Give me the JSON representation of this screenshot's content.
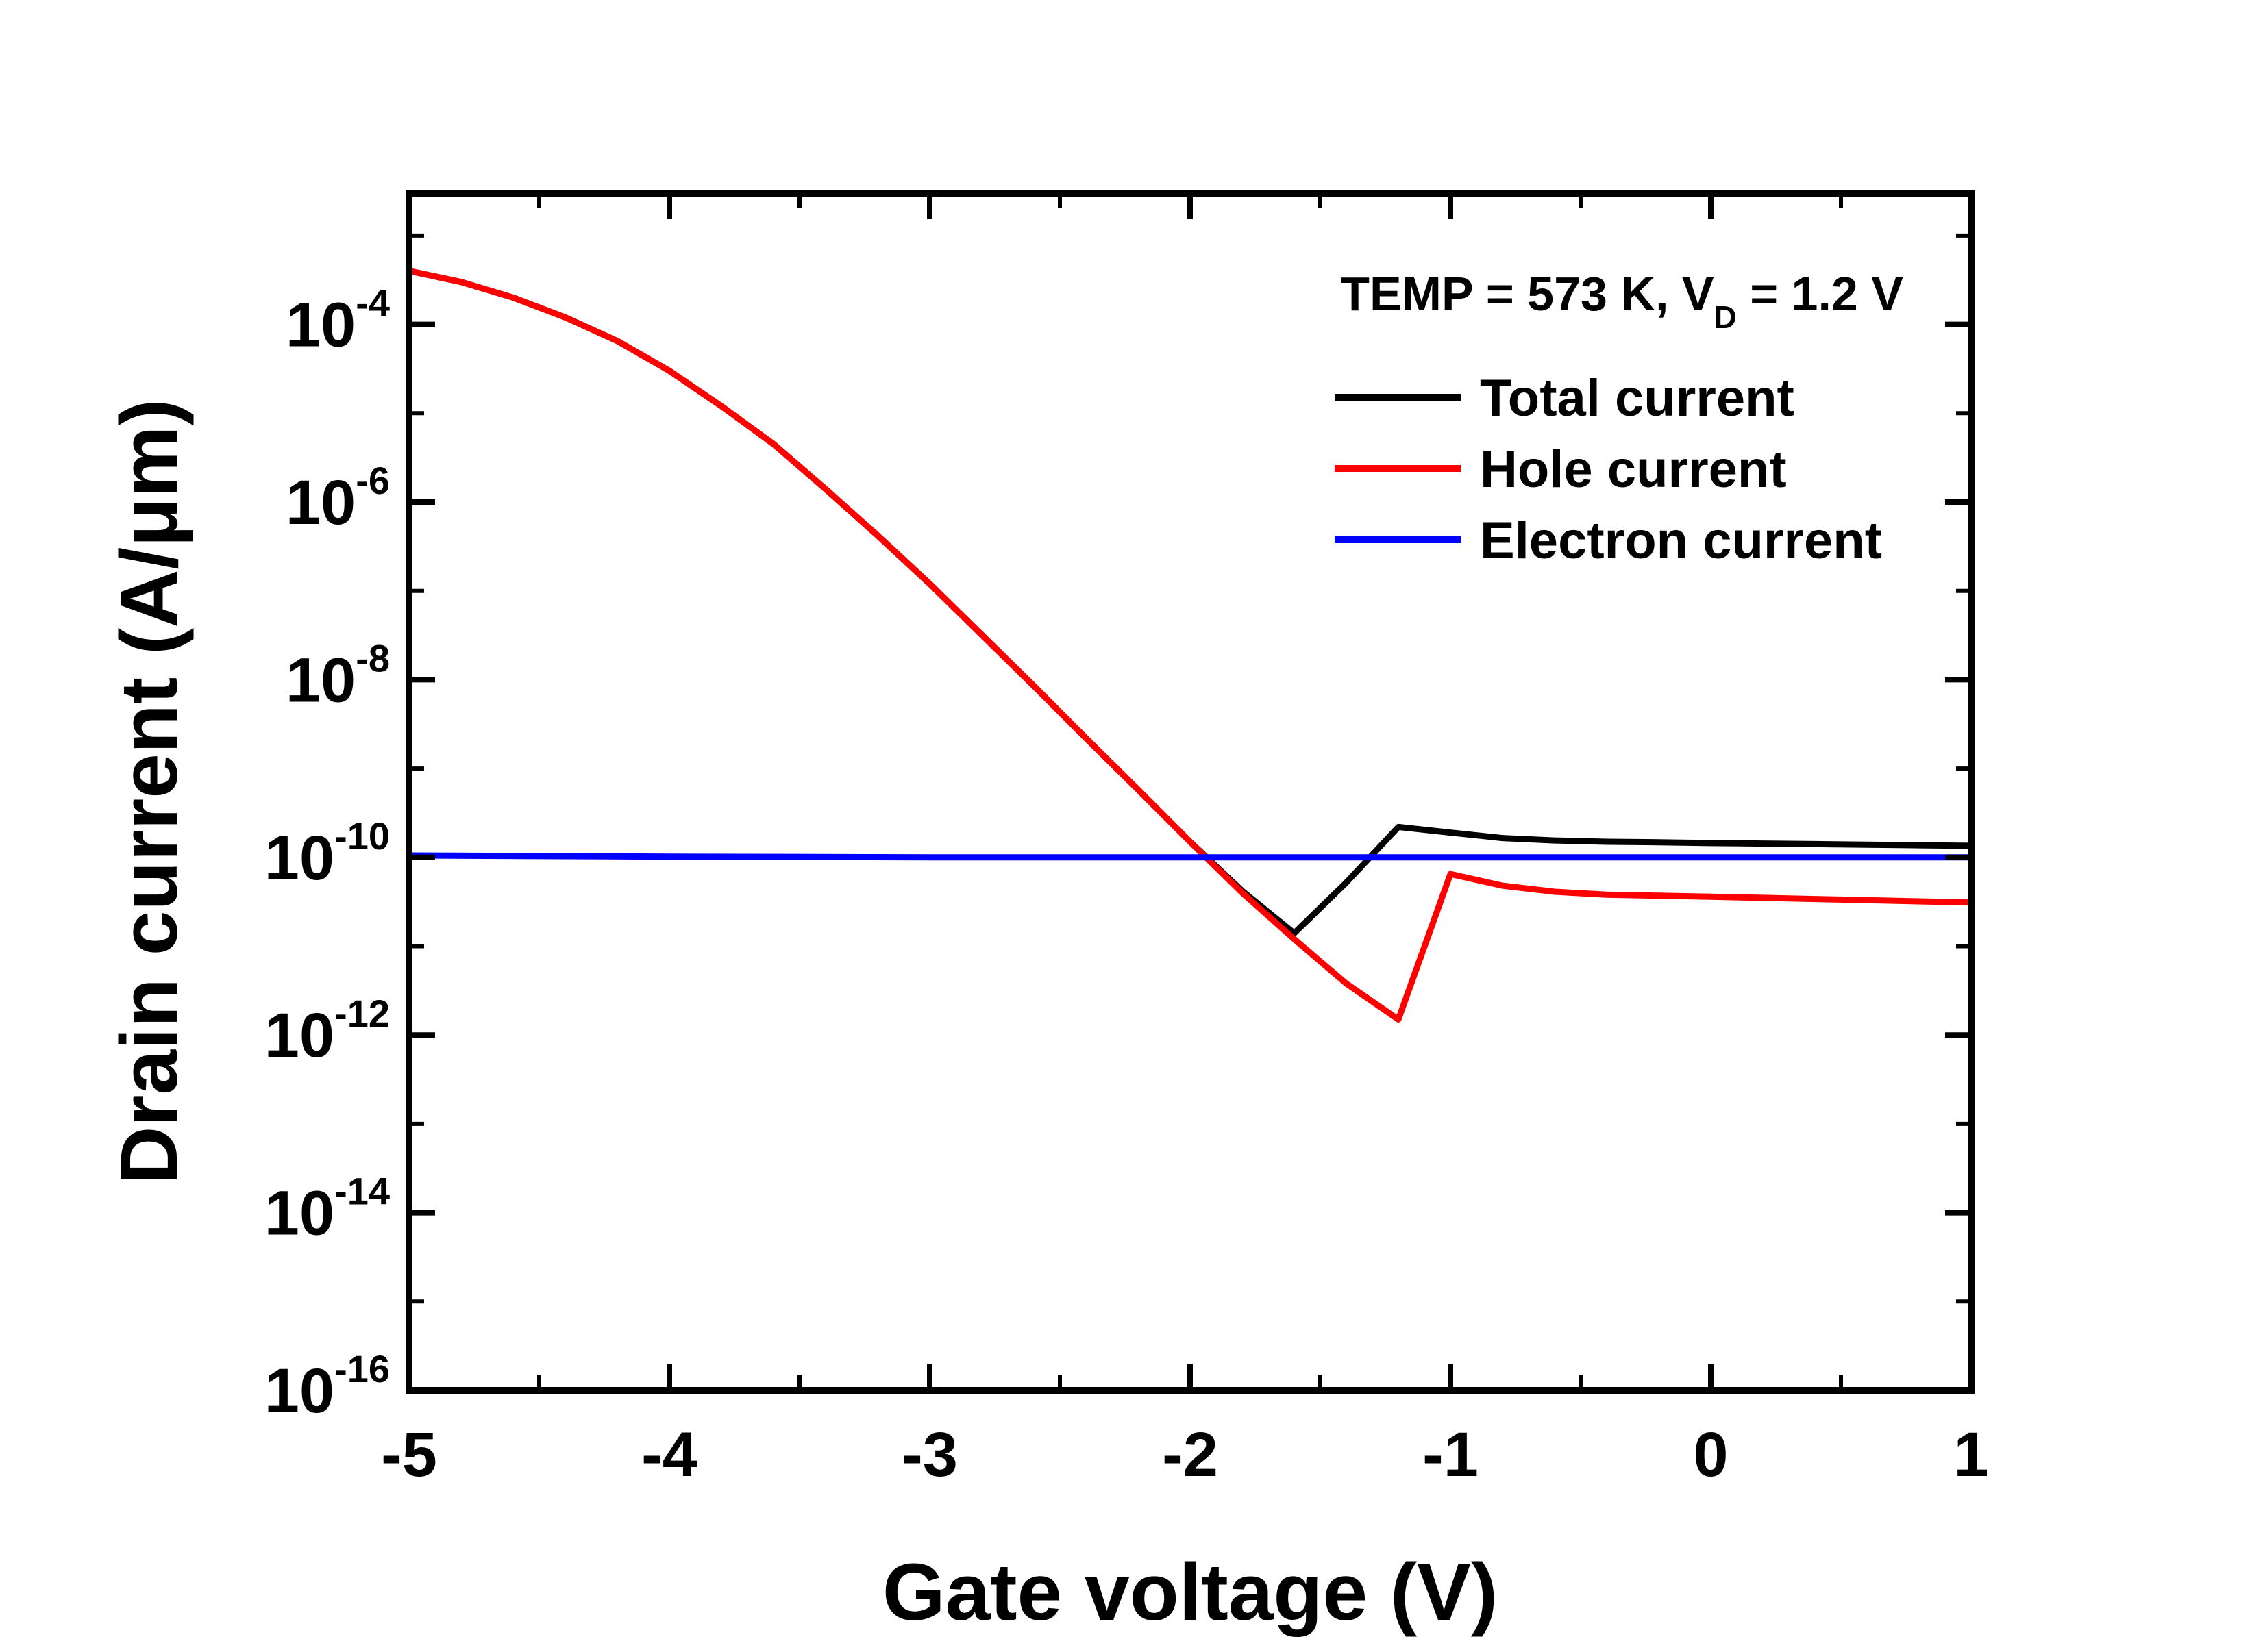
{
  "chart_data": {
    "type": "line",
    "title": "",
    "xlabel": "Gate voltage (V)",
    "ylabel": "Drain current (A/μm)",
    "xlim": [
      -5,
      1
    ],
    "ylim": [
      1e-16,
      0.003
    ],
    "yscale": "log",
    "x_ticks": [
      -5,
      -4,
      -3,
      -2,
      -1,
      0,
      1
    ],
    "x_tick_labels": [
      "-5",
      "-4",
      "-3",
      "-2",
      "-1",
      "0",
      "1"
    ],
    "y_ticks": [
      {
        "base": "10",
        "exp": "-16",
        "value": 1e-16
      },
      {
        "base": "10",
        "exp": "-14",
        "value": 1e-14
      },
      {
        "base": "10",
        "exp": "-12",
        "value": 1e-12
      },
      {
        "base": "10",
        "exp": "-10",
        "value": 1e-10
      },
      {
        "base": "10",
        "exp": "-8",
        "value": 1e-08
      },
      {
        "base": "10",
        "exp": "-6",
        "value": 1e-06
      },
      {
        "base": "10",
        "exp": "-4",
        "value": 0.0001
      }
    ],
    "annotation": {
      "prefix": "TEMP = 573 K, V",
      "subscript": "D",
      "suffix": " = 1.2 V"
    },
    "legend_position": "top-right",
    "grid": false,
    "series": [
      {
        "name": "Total current",
        "color": "#000000",
        "x": [
          -5.0,
          -4.8,
          -4.6,
          -4.4,
          -4.2,
          -4.0,
          -3.8,
          -3.6,
          -3.4,
          -3.2,
          -3.0,
          -2.8,
          -2.6,
          -2.4,
          -2.2,
          -2.0,
          -1.8,
          -1.6,
          -1.4,
          -1.2,
          -1.0,
          -0.8,
          -0.6,
          -0.4,
          -0.2,
          0.0,
          0.2,
          0.4,
          0.6,
          0.8,
          1.0
        ],
        "y": [
          0.0004,
          0.0003,
          0.0002,
          0.00012,
          6.5e-05,
          3e-05,
          1.2e-05,
          4.5e-06,
          1.4e-06,
          4.2e-07,
          1.2e-07,
          3.2e-08,
          8.5e-09,
          2.2e-09,
          5.8e-10,
          1.5e-10,
          4.2e-11,
          1.4e-11,
          5.2e-11,
          2.2e-10,
          1.9e-10,
          1.65e-10,
          1.55e-10,
          1.5e-10,
          1.48e-10,
          1.45e-10,
          1.43e-10,
          1.41e-10,
          1.39e-10,
          1.37e-10,
          1.35e-10
        ]
      },
      {
        "name": "Hole current",
        "color": "#ff0000",
        "x": [
          -5.0,
          -4.8,
          -4.6,
          -4.4,
          -4.2,
          -4.0,
          -3.8,
          -3.6,
          -3.4,
          -3.2,
          -3.0,
          -2.8,
          -2.6,
          -2.4,
          -2.2,
          -2.0,
          -1.8,
          -1.6,
          -1.4,
          -1.2,
          -1.0,
          -0.8,
          -0.6,
          -0.4,
          -0.2,
          0.0,
          0.2,
          0.4,
          0.6,
          0.8,
          1.0
        ],
        "y": [
          0.0004,
          0.0003,
          0.0002,
          0.00012,
          6.5e-05,
          3e-05,
          1.2e-05,
          4.5e-06,
          1.4e-06,
          4.2e-07,
          1.2e-07,
          3.2e-08,
          8.5e-09,
          2.2e-09,
          5.8e-10,
          1.5e-10,
          4e-11,
          1.2e-11,
          3.8e-12,
          1.5e-12,
          6.5e-11,
          4.8e-11,
          4.1e-11,
          3.8e-11,
          3.7e-11,
          3.6e-11,
          3.5e-11,
          3.4e-11,
          3.3e-11,
          3.2e-11,
          3.1e-11
        ]
      },
      {
        "name": "Electron current",
        "color": "#0000ff",
        "x": [
          -5.0,
          -4.0,
          -3.0,
          -2.0,
          -1.0,
          0.0,
          1.0
        ],
        "y": [
          1.05e-10,
          1.02e-10,
          1e-10,
          1e-10,
          1e-10,
          1e-10,
          1e-10
        ]
      }
    ]
  }
}
